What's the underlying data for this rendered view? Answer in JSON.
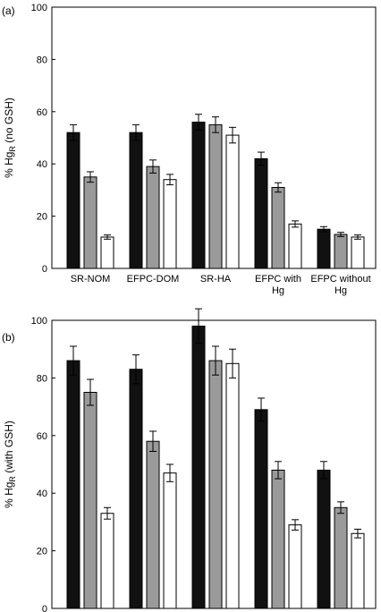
{
  "chart_data": [
    {
      "type": "bar",
      "panel_label": "(a)",
      "ylabel": {
        "main": "% Hg",
        "sub": "R",
        "suffix": " (no GSH)"
      },
      "ylim": [
        0,
        100
      ],
      "yticks": [
        0,
        20,
        40,
        60,
        80,
        100
      ],
      "categories": [
        [
          "SR-NOM"
        ],
        [
          "EFPC-DOM"
        ],
        [
          "SR-HA"
        ],
        [
          "EFPC with",
          "Hg"
        ],
        [
          "EFPC without",
          "Hg"
        ]
      ],
      "series": [
        {
          "fill": "#111111",
          "values": [
            52,
            52,
            56,
            42,
            15
          ],
          "errors": [
            3,
            3,
            3,
            2.5,
            1
          ]
        },
        {
          "fill": "#9a9a9a",
          "values": [
            35,
            39,
            55,
            31,
            13
          ],
          "errors": [
            2,
            2.5,
            3,
            1.8,
            0.8
          ]
        },
        {
          "fill": "#ffffff",
          "values": [
            12,
            34,
            51,
            17,
            12
          ],
          "errors": [
            0.8,
            2,
            3,
            1.2,
            0.8
          ]
        }
      ]
    },
    {
      "type": "bar",
      "panel_label": "(b)",
      "ylabel": {
        "main": "% Hg",
        "sub": "R",
        "suffix": " (with GSH)"
      },
      "ylim": [
        0,
        100
      ],
      "yticks": [
        0,
        20,
        40,
        60,
        80,
        100
      ],
      "categories": [
        [
          "SR-NOM"
        ],
        [
          "EFPC-DOM"
        ],
        [
          "SR-HA"
        ],
        [
          "EFPC with",
          "Hg"
        ],
        [
          "EFPC without",
          "Hg"
        ]
      ],
      "series": [
        {
          "fill": "#111111",
          "values": [
            86,
            83,
            98,
            69,
            48
          ],
          "errors": [
            5,
            5,
            6,
            4,
            3
          ]
        },
        {
          "fill": "#9a9a9a",
          "values": [
            75,
            58,
            86,
            48,
            35
          ],
          "errors": [
            4.5,
            3.5,
            5,
            3,
            2
          ]
        },
        {
          "fill": "#ffffff",
          "values": [
            33,
            47,
            85,
            29,
            26
          ],
          "errors": [
            2,
            3,
            5,
            1.8,
            1.5
          ]
        }
      ]
    }
  ]
}
